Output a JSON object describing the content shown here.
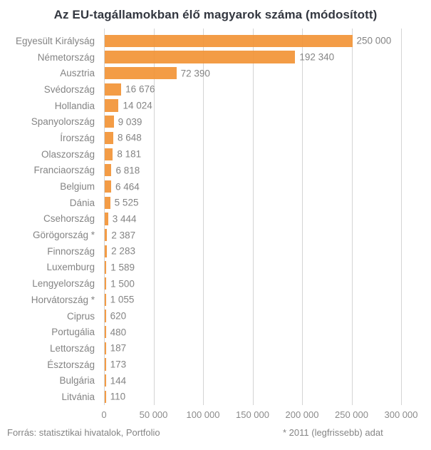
{
  "chart_data": {
    "type": "bar",
    "orientation": "horizontal",
    "title": "Az EU-tagállamokban élő magyarok száma (módosított)",
    "categories": [
      "Egyesült Királyság",
      "Németország",
      "Ausztria",
      "Svédország",
      "Hollandia",
      "Spanyolország",
      "Írország",
      "Olaszország",
      "Franciaország",
      "Belgium",
      "Dánia",
      "Csehország",
      "Görögország *",
      "Finnország",
      "Luxemburg",
      "Lengyelország",
      "Horvátország *",
      "Ciprus",
      "Portugália",
      "Lettország",
      "Észtország",
      "Bulgária",
      "Litvánia"
    ],
    "values": [
      250000,
      192340,
      72390,
      16676,
      14024,
      9039,
      8648,
      8181,
      6818,
      6464,
      5525,
      3444,
      2387,
      2283,
      1589,
      1500,
      1055,
      620,
      480,
      187,
      173,
      144,
      110
    ],
    "value_labels": [
      "250 000",
      "192 340",
      "72 390",
      "16 676",
      "14 024",
      "9 039",
      "8 648",
      "8 181",
      "6 818",
      "6 464",
      "5 525",
      "3 444",
      "2 387",
      "2 283",
      "1 589",
      "1 500",
      "1 055",
      "620",
      "480",
      "187",
      "173",
      "144",
      "110"
    ],
    "x_ticks": [
      "0",
      "50 000",
      "100 000",
      "150 000",
      "200 000",
      "250 000",
      "300 000"
    ],
    "x_tick_values": [
      0,
      50000,
      100000,
      150000,
      200000,
      250000,
      300000
    ],
    "xlim": [
      0,
      300000
    ],
    "grid": "vertical",
    "legend": "none",
    "bar_color": "#f2943a",
    "grid_color": "#d4d4d4",
    "label_color": "#848484",
    "title_color": "#333740"
  },
  "footer": {
    "source": "Forrás: statisztikai hivatalok, Portfolio",
    "note": "* 2011 (legfrissebb) adat"
  }
}
